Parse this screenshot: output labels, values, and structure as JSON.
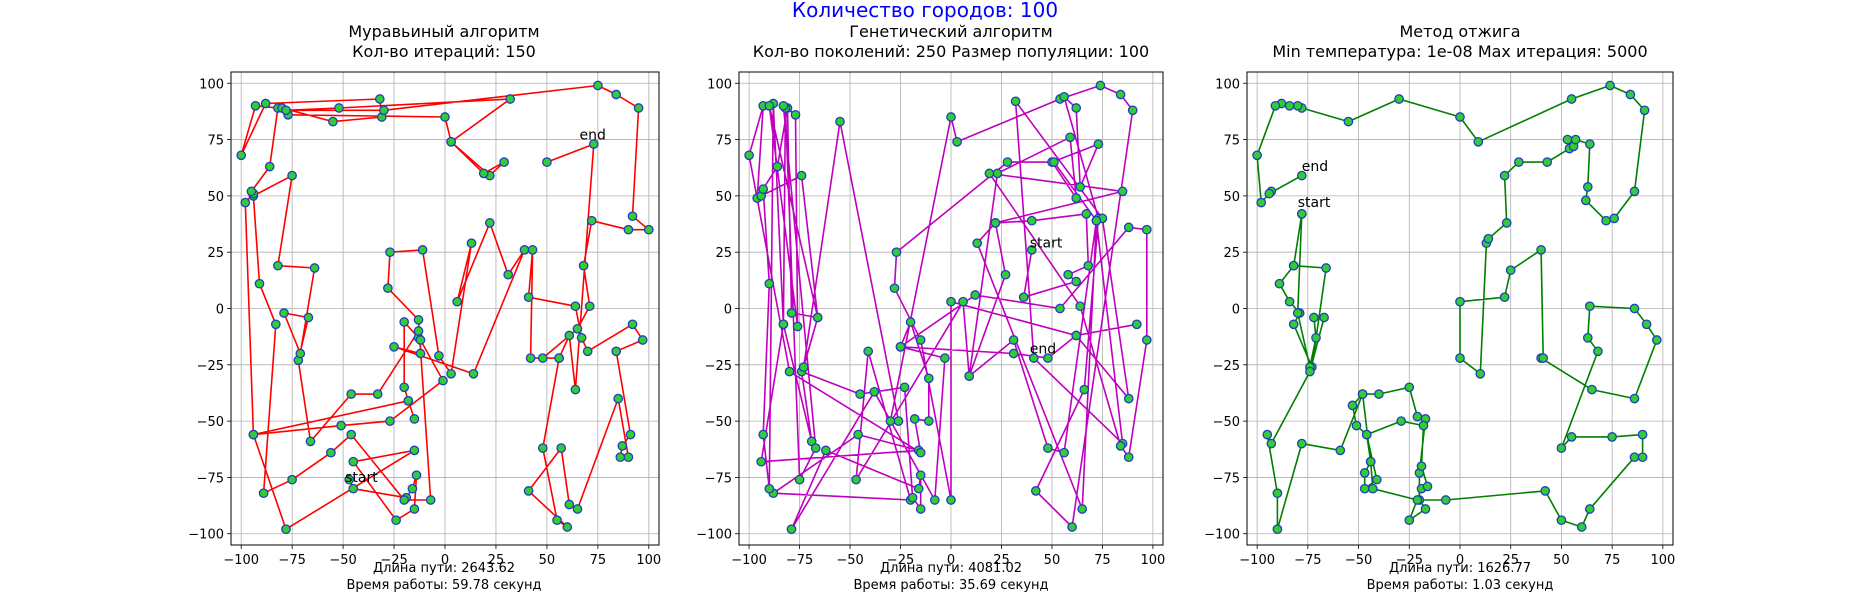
{
  "figure": {
    "suptitle": "Количество городов: 100",
    "suptitle_color": "#0000ff"
  },
  "chart_data": [
    {
      "type": "line",
      "title": "Муравьиный алгоритм",
      "subtitle": "Кол-во итераций: 150",
      "caption_length": "Длина пути: 2643.62",
      "caption_time": "Время работы: 59.78 секунд",
      "line_color": "#ff0000",
      "xlim": [
        -105,
        105
      ],
      "ylim": [
        -105,
        105
      ],
      "xticks": [
        -100,
        -75,
        -50,
        -25,
        0,
        25,
        50,
        75,
        100
      ],
      "yticks": [
        -100,
        -75,
        -50,
        -25,
        0,
        25,
        50,
        75,
        100
      ],
      "grid": true,
      "annotations": [
        {
          "text": "start",
          "x": -49,
          "y": -77
        },
        {
          "text": "end",
          "x": 66,
          "y": 75
        }
      ],
      "path": [
        [
          -47,
          -76
        ],
        [
          -45,
          -80
        ],
        [
          -19,
          -84
        ],
        [
          -16,
          -80
        ],
        [
          -14,
          -74
        ],
        [
          -15,
          -89
        ],
        [
          -24,
          -94
        ],
        [
          -45,
          -68
        ],
        [
          -15,
          -63
        ],
        [
          -78,
          -98
        ],
        [
          -94,
          -56
        ],
        [
          -18,
          -41
        ],
        [
          -15,
          -49
        ],
        [
          -18,
          -41
        ],
        [
          -20,
          -35
        ],
        [
          -20,
          -6
        ],
        [
          -13,
          -13
        ],
        [
          -13,
          -10
        ],
        [
          -33,
          -38
        ],
        [
          -46,
          -38
        ],
        [
          -66,
          -59
        ],
        [
          -72,
          -23
        ],
        [
          -67,
          -4
        ],
        [
          -79,
          -2
        ],
        [
          -71,
          -20
        ],
        [
          -64,
          18
        ],
        [
          -82,
          19
        ],
        [
          -75,
          59
        ],
        [
          -94,
          50
        ],
        [
          -91,
          11
        ],
        [
          -83,
          -7
        ],
        [
          -89,
          -82
        ],
        [
          -75,
          -76
        ],
        [
          -56,
          -64
        ],
        [
          -46,
          -56
        ],
        [
          -20,
          -85
        ],
        [
          -7,
          -85
        ],
        [
          -13,
          -5
        ],
        [
          -28,
          9
        ],
        [
          -27,
          25
        ],
        [
          -11,
          26
        ],
        [
          -3,
          -21
        ],
        [
          3,
          -29
        ],
        [
          13,
          29
        ],
        [
          6,
          3
        ],
        [
          22,
          38
        ],
        [
          31,
          15
        ],
        [
          39,
          26
        ],
        [
          14,
          -29
        ],
        [
          -25,
          -17
        ],
        [
          -12,
          -20
        ],
        [
          -12,
          -14
        ],
        [
          -1,
          -32
        ],
        [
          -27,
          -50
        ],
        [
          -51,
          -52
        ],
        [
          -94,
          -56
        ],
        [
          -98,
          47
        ],
        [
          -94,
          51
        ],
        [
          -95,
          52
        ],
        [
          -86,
          63
        ],
        [
          -82,
          89
        ],
        [
          -93,
          90
        ],
        [
          -100,
          68
        ],
        [
          -88,
          91
        ],
        [
          -32,
          93
        ],
        [
          -31,
          85
        ],
        [
          -55,
          83
        ],
        [
          -80,
          89
        ],
        [
          -77,
          86
        ],
        [
          0,
          85
        ],
        [
          3,
          74
        ],
        [
          22,
          59
        ],
        [
          29,
          65
        ],
        [
          19,
          60
        ],
        [
          3,
          74
        ],
        [
          32,
          93
        ],
        [
          -52,
          89
        ],
        [
          -78,
          88
        ],
        [
          -30,
          88
        ],
        [
          75,
          99
        ],
        [
          84,
          95
        ],
        [
          95,
          89
        ],
        [
          92,
          41
        ],
        [
          100,
          35
        ],
        [
          90,
          35
        ],
        [
          72,
          39
        ],
        [
          68,
          19
        ],
        [
          71,
          1
        ],
        [
          65,
          -9
        ],
        [
          48,
          -22
        ],
        [
          56,
          -22
        ],
        [
          48,
          -62
        ],
        [
          55,
          -94
        ],
        [
          60,
          -97
        ],
        [
          41,
          -81
        ],
        [
          57,
          -62
        ],
        [
          61,
          -87
        ],
        [
          65,
          -89
        ],
        [
          85,
          -40
        ],
        [
          90,
          -66
        ],
        [
          86,
          -66
        ],
        [
          87,
          -61
        ],
        [
          91,
          -56
        ],
        [
          84,
          -19
        ],
        [
          97,
          -14
        ],
        [
          92,
          -7
        ],
        [
          70,
          -19
        ],
        [
          67,
          -13
        ],
        [
          64,
          1
        ],
        [
          41,
          5
        ],
        [
          43,
          26
        ],
        [
          42,
          -22
        ],
        [
          56,
          -22
        ],
        [
          61,
          -12
        ],
        [
          64,
          -36
        ],
        [
          73,
          73
        ],
        [
          50,
          65
        ]
      ]
    },
    {
      "type": "line",
      "title": "Генетический алгоритм",
      "subtitle": "Кол-во поколений: 250 Размер популяции: 100",
      "caption_length": "Длина пути: 4081.02",
      "caption_time": "Время работы: 35.69 секунд",
      "line_color": "#bf00bf",
      "xlim": [
        -105,
        105
      ],
      "ylim": [
        -105,
        105
      ],
      "xticks": [
        -100,
        -75,
        -50,
        -25,
        0,
        25,
        50,
        75,
        100
      ],
      "yticks": [
        -100,
        -75,
        -50,
        -25,
        0,
        25,
        50,
        75,
        100
      ],
      "grid": true,
      "annotations": [
        {
          "text": "start",
          "x": 39,
          "y": 27
        },
        {
          "text": "end",
          "x": 39,
          "y": -20
        }
      ],
      "path": [
        [
          40,
          26
        ],
        [
          36,
          5
        ],
        [
          62,
          12
        ],
        [
          58,
          15
        ],
        [
          68,
          19
        ],
        [
          67,
          42
        ],
        [
          40,
          39
        ],
        [
          22,
          38
        ],
        [
          27,
          15
        ],
        [
          9,
          -30
        ],
        [
          6,
          3
        ],
        [
          -47,
          -76
        ],
        [
          -41,
          -19
        ],
        [
          -20,
          -85
        ],
        [
          -88,
          -82
        ],
        [
          -46,
          -56
        ],
        [
          -16,
          -63
        ],
        [
          -94,
          -68
        ],
        [
          -83,
          -7
        ],
        [
          -69,
          -59
        ],
        [
          -74,
          -28
        ],
        [
          -45,
          -38
        ],
        [
          -23,
          -35
        ],
        [
          -19,
          -84
        ],
        [
          -15,
          -89
        ],
        [
          -15,
          -74
        ],
        [
          -16,
          -80
        ],
        [
          -62,
          -63
        ],
        [
          -79,
          -98
        ],
        [
          -38,
          -37
        ],
        [
          -8,
          -85
        ],
        [
          -3,
          -22
        ],
        [
          -25,
          -17
        ],
        [
          -20,
          -6
        ],
        [
          -11,
          -31
        ],
        [
          -11,
          -50
        ],
        [
          -18,
          -49
        ],
        [
          -15,
          -64
        ],
        [
          -80,
          -28
        ],
        [
          -100,
          68
        ],
        [
          -93,
          90
        ],
        [
          -96,
          49
        ],
        [
          -86,
          63
        ],
        [
          -81,
          89
        ],
        [
          -79,
          -2
        ],
        [
          -66,
          -4
        ],
        [
          -74,
          59
        ],
        [
          -94,
          50
        ],
        [
          -93,
          53
        ],
        [
          -90,
          11
        ],
        [
          -93,
          -56
        ],
        [
          -90,
          -80
        ],
        [
          -88,
          91
        ],
        [
          -83,
          -7
        ],
        [
          -82,
          89
        ],
        [
          -75,
          -76
        ],
        [
          -67,
          -62
        ],
        [
          -83,
          90
        ],
        [
          -77,
          86
        ],
        [
          -76,
          -8
        ],
        [
          -90,
          90
        ],
        [
          -66,
          -4
        ],
        [
          -73,
          -26
        ],
        [
          -55,
          83
        ],
        [
          -26,
          -50
        ],
        [
          -30,
          -50
        ],
        [
          0,
          85
        ],
        [
          3,
          74
        ],
        [
          54,
          93
        ],
        [
          74,
          99
        ],
        [
          84,
          95
        ],
        [
          90,
          88
        ],
        [
          60,
          -97
        ],
        [
          42,
          -81
        ],
        [
          66,
          -36
        ],
        [
          73,
          40
        ],
        [
          56,
          94
        ],
        [
          62,
          89
        ],
        [
          64,
          54
        ],
        [
          73,
          73
        ],
        [
          50,
          65
        ],
        [
          62,
          49
        ],
        [
          59,
          76
        ],
        [
          23,
          60
        ],
        [
          9,
          -30
        ],
        [
          31,
          -14
        ],
        [
          48,
          -62
        ],
        [
          56,
          -64
        ],
        [
          72,
          39
        ],
        [
          85,
          -60
        ],
        [
          41,
          -22
        ],
        [
          32,
          92
        ],
        [
          75,
          40
        ],
        [
          88,
          -40
        ],
        [
          62,
          -12
        ],
        [
          0,
          3
        ],
        [
          0,
          -85
        ],
        [
          -15,
          -14
        ],
        [
          -28,
          9
        ],
        [
          -27,
          25
        ],
        [
          28,
          65
        ],
        [
          51,
          65
        ],
        [
          72,
          39
        ],
        [
          65,
          -89
        ],
        [
          13,
          29
        ],
        [
          22,
          38
        ],
        [
          85,
          52
        ],
        [
          19,
          60
        ],
        [
          64,
          1
        ],
        [
          84,
          -61
        ],
        [
          88,
          -66
        ],
        [
          97,
          -14
        ],
        [
          97,
          35
        ],
        [
          88,
          36
        ],
        [
          54,
          0
        ],
        [
          12,
          6
        ],
        [
          -25,
          -17
        ],
        [
          31,
          -20
        ],
        [
          48,
          -22
        ],
        [
          62,
          -12
        ],
        [
          92,
          -7
        ]
      ]
    },
    {
      "type": "line",
      "title": "Метод отжига",
      "subtitle": "Min температура: 1e-08 Max итерация: 5000",
      "caption_length": "Длина пути: 1626.77",
      "caption_time": "Время работы: 1.03 секунд",
      "line_color": "#007f00",
      "xlim": [
        -105,
        105
      ],
      "ylim": [
        -105,
        105
      ],
      "xticks": [
        -100,
        -75,
        -50,
        -25,
        0,
        25,
        50,
        75,
        100
      ],
      "yticks": [
        -100,
        -75,
        -50,
        -25,
        0,
        25,
        50,
        75,
        100
      ],
      "grid": true,
      "annotations": [
        {
          "text": "start",
          "x": -80,
          "y": 45
        },
        {
          "text": "end",
          "x": -78,
          "y": 61
        }
      ],
      "path": [
        [
          -78,
          42
        ],
        [
          -82,
          19
        ],
        [
          -66,
          18
        ],
        [
          -73,
          -26
        ],
        [
          -82,
          -7
        ],
        [
          -79,
          -2
        ],
        [
          -84,
          3
        ],
        [
          -89,
          11
        ],
        [
          -82,
          19
        ],
        [
          -78,
          42
        ],
        [
          -80,
          -2
        ],
        [
          -74,
          -26
        ],
        [
          -71,
          -13
        ],
        [
          -72,
          -4
        ],
        [
          -67,
          -4
        ],
        [
          -74,
          -28
        ],
        [
          -93,
          -60
        ],
        [
          -95,
          -56
        ],
        [
          -90,
          -82
        ],
        [
          -90,
          -98
        ],
        [
          -78,
          -60
        ],
        [
          -59,
          -63
        ],
        [
          -48,
          -38
        ],
        [
          -40,
          -38
        ],
        [
          -25,
          -35
        ],
        [
          -21,
          -48
        ],
        [
          -17,
          -49
        ],
        [
          -20,
          -73
        ],
        [
          -20,
          -85
        ],
        [
          -17,
          -89
        ],
        [
          -25,
          -94
        ],
        [
          -19,
          -80
        ],
        [
          -16,
          -79
        ],
        [
          -19,
          -70
        ],
        [
          -18,
          -52
        ],
        [
          -29,
          -50
        ],
        [
          -46,
          -56
        ],
        [
          -41,
          -76
        ],
        [
          -47,
          -80
        ],
        [
          -47,
          -73
        ],
        [
          -44,
          -68
        ],
        [
          -48,
          -38
        ],
        [
          -53,
          -43
        ],
        [
          -51,
          -52
        ],
        [
          -46,
          -56
        ],
        [
          -44,
          -68
        ],
        [
          -43,
          -80
        ],
        [
          -21,
          -85
        ],
        [
          -7,
          -85
        ],
        [
          42,
          -81
        ],
        [
          50,
          -94
        ],
        [
          60,
          -97
        ],
        [
          64,
          -89
        ],
        [
          86,
          -66
        ],
        [
          90,
          -66
        ],
        [
          90,
          -56
        ],
        [
          75,
          -57
        ],
        [
          55,
          -57
        ],
        [
          50,
          -62
        ],
        [
          68,
          -19
        ],
        [
          63,
          -13
        ],
        [
          64,
          1
        ],
        [
          86,
          0
        ],
        [
          92,
          -7
        ],
        [
          97,
          -14
        ],
        [
          86,
          -40
        ],
        [
          65,
          -36
        ],
        [
          40,
          -22
        ],
        [
          41,
          -22
        ],
        [
          40,
          26
        ],
        [
          25,
          17
        ],
        [
          22,
          5
        ],
        [
          0,
          3
        ],
        [
          0,
          -22
        ],
        [
          10,
          -29
        ],
        [
          13,
          29
        ],
        [
          14,
          31
        ],
        [
          23,
          38
        ],
        [
          22,
          59
        ],
        [
          29,
          65
        ],
        [
          43,
          65
        ],
        [
          54,
          71
        ],
        [
          56,
          72
        ],
        [
          53,
          75
        ],
        [
          57,
          75
        ],
        [
          64,
          73
        ],
        [
          63,
          54
        ],
        [
          62,
          48
        ],
        [
          72,
          39
        ],
        [
          76,
          40
        ],
        [
          86,
          52
        ],
        [
          91,
          88
        ],
        [
          84,
          95
        ],
        [
          74,
          99
        ],
        [
          55,
          93
        ],
        [
          9,
          74
        ],
        [
          0,
          85
        ],
        [
          -30,
          93
        ],
        [
          -55,
          83
        ],
        [
          -78,
          89
        ],
        [
          -80,
          90
        ],
        [
          -84,
          90
        ],
        [
          -88,
          91
        ],
        [
          -91,
          90
        ],
        [
          -100,
          68
        ],
        [
          -98,
          47
        ],
        [
          -93,
          52
        ],
        [
          -94,
          51
        ],
        [
          -78,
          59
        ]
      ]
    }
  ]
}
